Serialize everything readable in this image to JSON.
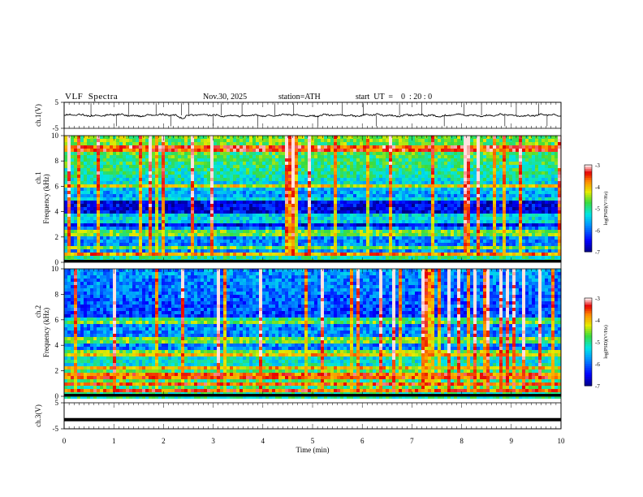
{
  "header": {
    "title": "VLF  Spectra",
    "date": "Nov.30, 2025",
    "station": "station=ATH",
    "start": "start  UT  =    0  : 20 : 0"
  },
  "chart_data": {
    "type": "heatmap",
    "x": {
      "label": "Time  (min)",
      "range": [
        0,
        10
      ],
      "ticks": [
        "0",
        "1",
        "2",
        "3",
        "4",
        "5",
        "6",
        "7",
        "8",
        "9",
        "10"
      ]
    },
    "panels": [
      {
        "id": "ch1-waveform",
        "type": "line",
        "ylabel": "ch.1(V)",
        "ylim": [
          -5,
          5
        ],
        "yticks": [
          "5",
          "-5"
        ],
        "trace_level": 0,
        "spike_times": [
          0.54,
          1.05,
          1.3,
          1.85,
          2.15,
          2.36,
          2.51,
          3.0,
          3.16,
          3.58,
          3.9,
          4.24,
          4.62,
          5.11,
          5.6,
          6.02,
          6.28,
          6.75,
          7.2,
          7.65,
          8.05,
          8.4,
          8.87,
          9.1,
          9.55,
          9.72
        ]
      },
      {
        "id": "ch1-spectrogram",
        "type": "heatmap",
        "ylabel_top": "ch.1",
        "ylabel": "Frequency  (kHz)",
        "ylim": [
          0,
          10
        ],
        "yticks": [
          "0",
          "2",
          "4",
          "6",
          "8",
          "10"
        ],
        "noise_bands_khz": [
          0.6,
          1.2,
          2.1,
          2.4,
          3.2,
          3.6,
          4.9,
          6.1,
          8.8,
          9.1
        ],
        "colorbar": {
          "label": "log(PSD)(V²/Hz)",
          "range": [
            -7,
            -3
          ],
          "ticks": [
            "-3",
            "-4",
            "-5",
            "-6",
            "-7"
          ]
        }
      },
      {
        "id": "ch2-spectrogram",
        "type": "heatmap",
        "ylabel_top": "ch.2",
        "ylabel": "Frequency  (kHz)",
        "ylim": [
          0,
          10
        ],
        "yticks": [
          "0",
          "2",
          "4",
          "6",
          "8",
          "10"
        ],
        "noise_bands_khz": [
          0.6,
          1.1,
          1.6,
          1.9,
          2.3,
          3.3,
          3.5,
          4.5,
          4.7,
          6.0
        ],
        "colorbar": {
          "label": "log(PSD)(V²/Hz)",
          "range": [
            -7,
            -3
          ],
          "ticks": [
            "-3",
            "-4",
            "-5",
            "-6",
            "-7"
          ]
        }
      },
      {
        "id": "ch3-waveform",
        "type": "line",
        "ylabel": "ch.3(V)",
        "ylim": [
          -5,
          5
        ],
        "yticks": [
          "5",
          "-5"
        ],
        "trace_level": -1.5
      }
    ]
  }
}
